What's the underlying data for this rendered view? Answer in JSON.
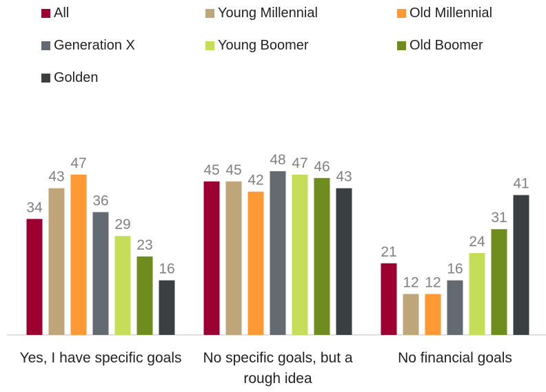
{
  "chart_data": {
    "type": "bar",
    "categories": [
      "Yes, I have specific goals",
      "No specific goals, but a rough idea",
      "No financial goals"
    ],
    "series": [
      {
        "name": "All",
        "color": "#9b0030",
        "values": [
          34,
          45,
          21
        ]
      },
      {
        "name": "Young Millennial",
        "color": "#bfa57a",
        "values": [
          43,
          45,
          12
        ]
      },
      {
        "name": "Old Millennial",
        "color": "#ff9933",
        "values": [
          47,
          42,
          12
        ]
      },
      {
        "name": "Generation X",
        "color": "#636a72",
        "values": [
          36,
          48,
          16
        ]
      },
      {
        "name": "Young Boomer",
        "color": "#c5de57",
        "values": [
          29,
          47,
          24
        ]
      },
      {
        "name": "Old Boomer",
        "color": "#6f8c1e",
        "values": [
          23,
          46,
          31
        ]
      },
      {
        "name": "Golden",
        "color": "#3a3f42",
        "values": [
          16,
          43,
          41
        ]
      }
    ],
    "ylim": [
      0,
      50
    ]
  }
}
